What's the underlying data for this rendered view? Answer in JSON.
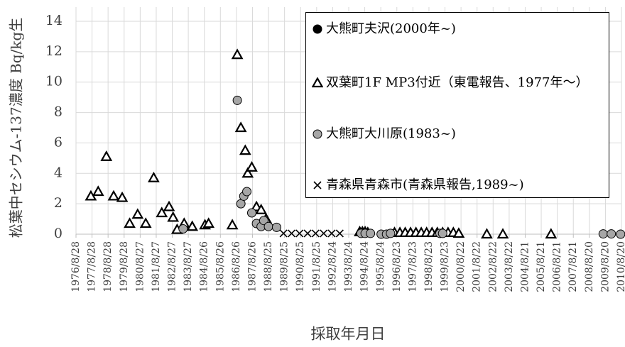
{
  "chart_data": {
    "type": "scatter",
    "y_label": "松葉中セシウム-137濃度 Bq/kg生",
    "x_label": "採取年月日",
    "xlim": [
      "1976/8/28",
      "2010/8/20"
    ],
    "xticks": [
      "1976/8/28",
      "1977/8/28",
      "1978/8/28",
      "1979/8/28",
      "1980/8/27",
      "1981/8/27",
      "1982/8/27",
      "1983/8/27",
      "1984/8/26",
      "1985/8/26",
      "1986/8/26",
      "1987/8/26",
      "1988/8/25",
      "1989/8/25",
      "1990/8/25",
      "1991/8/25",
      "1992/8/24",
      "1993/8/24",
      "1994/8/24",
      "1995/8/24",
      "1996/8/23",
      "1997/8/23",
      "1998/8/23",
      "1999/8/23",
      "2000/8/22",
      "2001/8/22",
      "2002/8/22",
      "2003/8/22",
      "2004/8/21",
      "2005/8/21",
      "2006/8/21",
      "2007/8/21",
      "2008/8/20",
      "2009/8/20",
      "2010/8/20"
    ],
    "ylim": [
      0,
      14
    ],
    "yticks": [
      0,
      2,
      4,
      6,
      8,
      10,
      12,
      14
    ],
    "grid": true,
    "legend": "upper-right",
    "series": [
      {
        "name": "大熊町夫沢(2000年~)",
        "marker": "circle",
        "color": "#000000",
        "x": [],
        "values": []
      },
      {
        "name": "双葉町1F MP3付近（東電報告、1977年～）",
        "marker": "triangle",
        "color": "#ffffff",
        "x": [
          "1977/8/1",
          "1978/1/15",
          "1978/7/20",
          "1979/1/1",
          "1979/7/15",
          "1980/1/1",
          "1980/7/1",
          "1981/1/1",
          "1981/7/1",
          "1982/1/1",
          "1982/6/15",
          "1982/9/15",
          "1982/12/15",
          "1983/5/25",
          "1983/11/25",
          "1984/9/10",
          "1984/12/1",
          "1986/5/25",
          "1986/9/15",
          "1986/12/5",
          "1987/3/15",
          "1987/5/10",
          "1987/8/10",
          "1987/11/25",
          "1988/3/10",
          "1988/7/1",
          "1994/5/1",
          "1994/7/1",
          "1994/9/1",
          "1994/11/1",
          "1996/7/1",
          "1996/11/1",
          "1997/3/1",
          "1997/7/1",
          "1997/11/1",
          "1998/3/1",
          "1998/7/1",
          "1998/11/1",
          "1999/3/1",
          "1999/7/1",
          "1999/11/1",
          "2000/3/1",
          "2000/7/1",
          "2002/4/1",
          "2003/4/1",
          "2006/4/1"
        ],
        "values": [
          2.5,
          2.8,
          5.1,
          2.5,
          2.4,
          0.7,
          1.3,
          0.7,
          3.7,
          1.4,
          1.8,
          1.1,
          0.3,
          0.7,
          0.5,
          0.6,
          0.7,
          0.6,
          11.8,
          7.0,
          5.5,
          4.0,
          4.4,
          1.8,
          1.6,
          1.0,
          0.15,
          0.15,
          0.15,
          0.1,
          0.1,
          0.1,
          0.1,
          0.1,
          0.1,
          0.1,
          0.1,
          0.1,
          0.1,
          0.1,
          0.1,
          0.1,
          0.05,
          0,
          0,
          0
        ]
      },
      {
        "name": "大熊町大川原(1983~)",
        "marker": "circle",
        "color": "#a6a6a6",
        "x": [
          "1983/5/1",
          "1986/9/15",
          "1986/12/5",
          "1987/2/10",
          "1987/4/20",
          "1987/8/10",
          "1987/11/25",
          "1988/3/10",
          "1988/5/10",
          "1988/8/25",
          "1989/2/25",
          "1994/6/1",
          "1994/9/1",
          "1995/1/1",
          "1995/9/1",
          "1996/1/1",
          "1996/4/1",
          "1999/5/1",
          "1999/7/1",
          "2009/7/1",
          "2010/1/1",
          "2010/8/1"
        ],
        "values": [
          0.35,
          8.8,
          2.0,
          2.5,
          2.8,
          1.4,
          0.7,
          0.5,
          0.9,
          0.5,
          0.45,
          0.05,
          0.05,
          0.05,
          0,
          0,
          0.05,
          0.05,
          0.05,
          0.02,
          0.02,
          0
        ]
      },
      {
        "name": "青森県青森市(青森県報告,1989~)",
        "marker": "x",
        "color": "#000000",
        "x": [
          "1989/8/1",
          "1990/2/1",
          "1990/8/1",
          "1991/2/1",
          "1991/8/1",
          "1992/2/1",
          "1992/8/1",
          "1993/2/1"
        ],
        "values": [
          0.05,
          0.05,
          0.05,
          0.05,
          0.05,
          0.05,
          0.05,
          0.05
        ]
      }
    ]
  }
}
